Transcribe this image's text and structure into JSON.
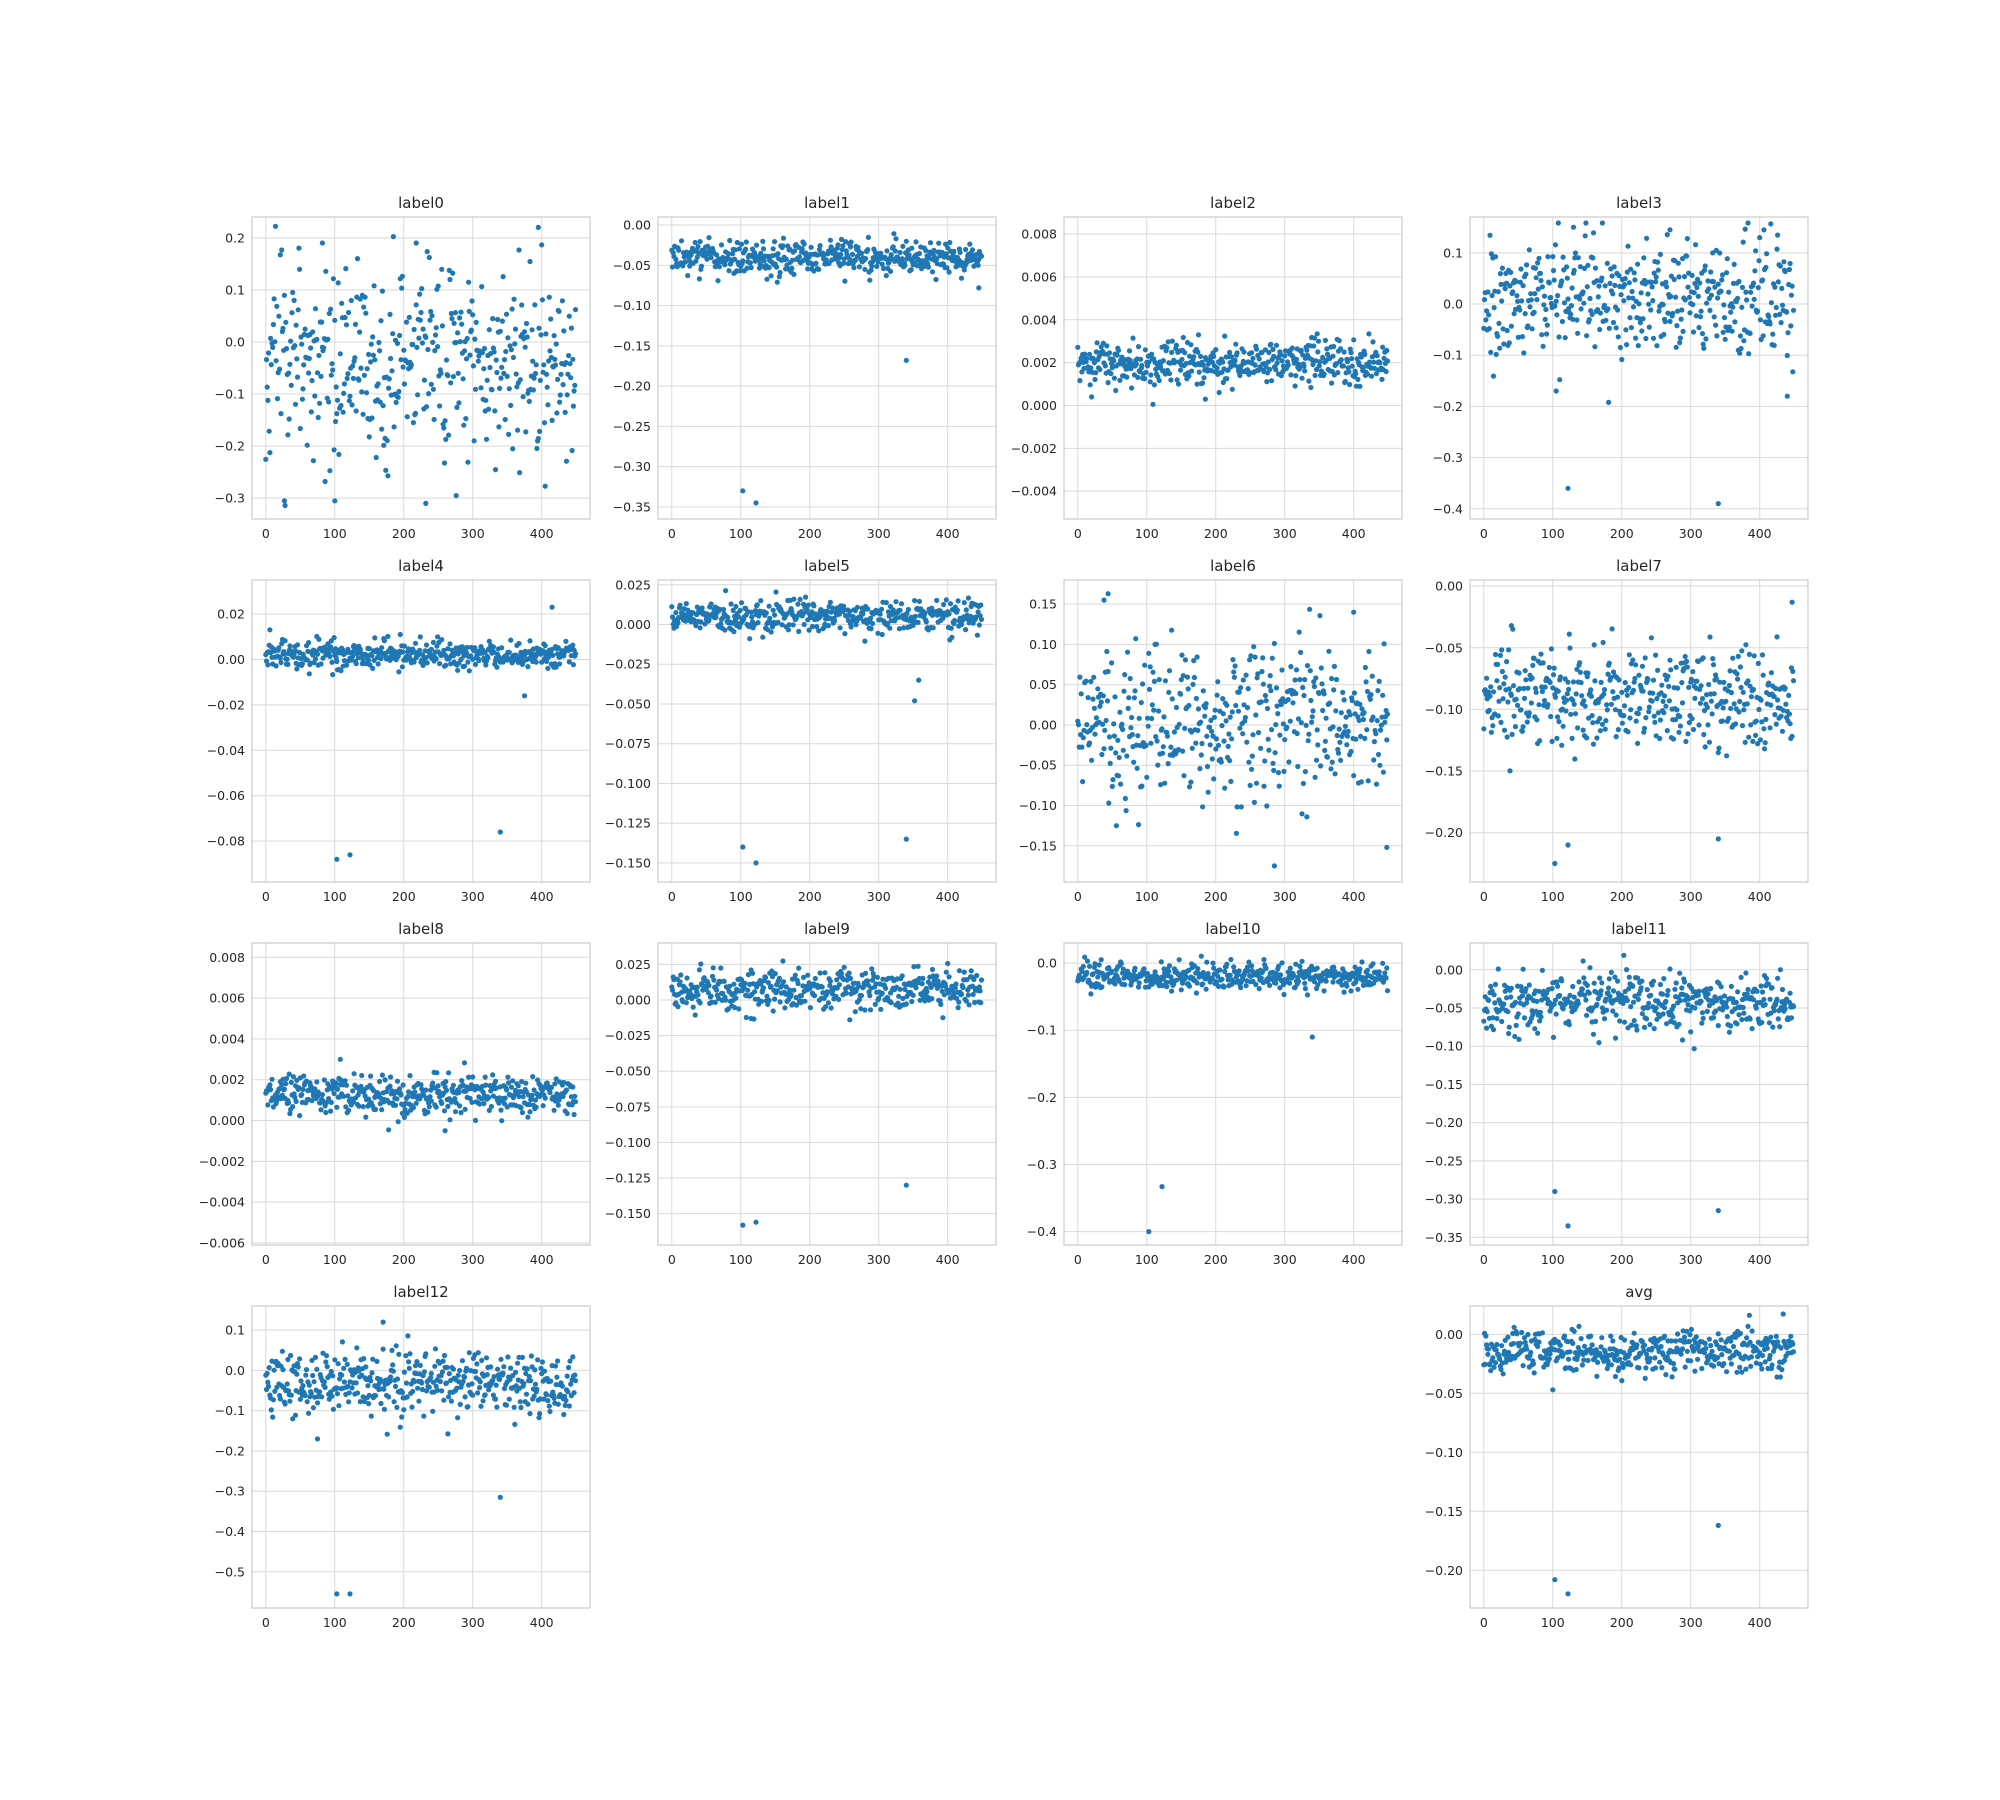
{
  "chart_data": [
    {
      "type": "scatter",
      "title": "label0",
      "xlim": [
        -20,
        470
      ],
      "ylim": [
        -0.34,
        0.24
      ],
      "xticks": [
        0,
        100,
        200,
        300,
        400
      ],
      "yticks": [
        -0.3,
        -0.2,
        -0.1,
        0.0,
        0.1,
        0.2
      ],
      "ytick_labels": [
        "−0.3",
        "−0.2",
        "−0.1",
        "0.0",
        "0.1",
        "0.2"
      ],
      "n": 450,
      "mean": -0.04,
      "spread": 0.09,
      "outliers": [
        [
          82,
          0.19
        ],
        [
          395,
          0.22
        ],
        [
          218,
          0.19
        ],
        [
          27,
          -0.305
        ],
        [
          100,
          -0.305
        ],
        [
          232,
          -0.31
        ],
        [
          276,
          -0.295
        ]
      ]
    },
    {
      "type": "scatter",
      "title": "label1",
      "xlim": [
        -20,
        470
      ],
      "ylim": [
        -0.365,
        0.01
      ],
      "xticks": [
        0,
        100,
        200,
        300,
        400
      ],
      "yticks": [
        -0.35,
        -0.3,
        -0.25,
        -0.2,
        -0.15,
        -0.1,
        -0.05,
        0.0
      ],
      "ytick_labels": [
        "−0.35",
        "−0.30",
        "−0.25",
        "−0.20",
        "−0.15",
        "−0.10",
        "−0.05",
        "0.00"
      ],
      "n": 450,
      "mean": -0.04,
      "spread": 0.01,
      "outliers": [
        [
          103,
          -0.33
        ],
        [
          122,
          -0.345
        ],
        [
          340,
          -0.168
        ],
        [
          445,
          -0.078
        ]
      ]
    },
    {
      "type": "scatter",
      "title": "label2",
      "xlim": [
        -20,
        470
      ],
      "ylim": [
        -0.0053,
        0.0088
      ],
      "xticks": [
        0,
        100,
        200,
        300,
        400
      ],
      "yticks": [
        -0.004,
        -0.002,
        0.0,
        0.002,
        0.004,
        0.006,
        0.008
      ],
      "ytick_labels": [
        "−0.004",
        "−0.002",
        "0.000",
        "0.002",
        "0.004",
        "0.006",
        "0.008"
      ],
      "n": 450,
      "mean": 0.002,
      "spread": 0.0005,
      "outliers": [
        [
          20,
          0.0004
        ],
        [
          185,
          0.0003
        ],
        [
          175,
          0.0033
        ]
      ]
    },
    {
      "type": "scatter",
      "title": "label3",
      "xlim": [
        -20,
        470
      ],
      "ylim": [
        -0.42,
        0.17
      ],
      "xticks": [
        0,
        100,
        200,
        300,
        400
      ],
      "yticks": [
        -0.4,
        -0.3,
        -0.2,
        -0.1,
        0.0,
        0.1
      ],
      "ytick_labels": [
        "−0.4",
        "−0.3",
        "−0.2",
        "−0.1",
        "0.0",
        "0.1"
      ],
      "n": 450,
      "mean": 0.01,
      "spread": 0.055,
      "outliers": [
        [
          122,
          -0.36
        ],
        [
          340,
          -0.39
        ],
        [
          105,
          -0.17
        ],
        [
          440,
          -0.18
        ],
        [
          130,
          0.15
        ],
        [
          270,
          0.145
        ]
      ]
    },
    {
      "type": "scatter",
      "title": "label4",
      "xlim": [
        -20,
        470
      ],
      "ylim": [
        -0.098,
        0.035
      ],
      "xticks": [
        0,
        100,
        200,
        300,
        400
      ],
      "yticks": [
        -0.08,
        -0.06,
        -0.04,
        -0.02,
        0.0,
        0.02
      ],
      "ytick_labels": [
        "−0.08",
        "−0.06",
        "−0.04",
        "−0.02",
        "0.00",
        "0.02"
      ],
      "n": 450,
      "mean": 0.002,
      "spread": 0.003,
      "outliers": [
        [
          103,
          -0.088
        ],
        [
          122,
          -0.086
        ],
        [
          340,
          -0.076
        ],
        [
          375,
          -0.016
        ],
        [
          415,
          0.023
        ],
        [
          195,
          0.011
        ]
      ]
    },
    {
      "type": "scatter",
      "title": "label5",
      "xlim": [
        -20,
        470
      ],
      "ylim": [
        -0.162,
        0.028
      ],
      "xticks": [
        0,
        100,
        200,
        300,
        400
      ],
      "yticks": [
        -0.15,
        -0.125,
        -0.1,
        -0.075,
        -0.05,
        -0.025,
        0.0,
        0.025
      ],
      "ytick_labels": [
        "−0.150",
        "−0.125",
        "−0.100",
        "−0.075",
        "−0.050",
        "−0.025",
        "0.000",
        "0.025"
      ],
      "n": 450,
      "mean": 0.005,
      "spread": 0.005,
      "outliers": [
        [
          103,
          -0.14
        ],
        [
          122,
          -0.15
        ],
        [
          340,
          -0.135
        ],
        [
          352,
          -0.048
        ],
        [
          358,
          -0.035
        ]
      ]
    },
    {
      "type": "scatter",
      "title": "label6",
      "xlim": [
        -20,
        470
      ],
      "ylim": [
        -0.195,
        0.18
      ],
      "xticks": [
        0,
        100,
        200,
        300,
        400
      ],
      "yticks": [
        -0.15,
        -0.1,
        -0.05,
        0.0,
        0.05,
        0.1,
        0.15
      ],
      "ytick_labels": [
        "−0.15",
        "−0.10",
        "−0.05",
        "0.00",
        "0.05",
        "0.10",
        "0.15"
      ],
      "n": 450,
      "mean": 0.005,
      "spread": 0.05,
      "outliers": [
        [
          38,
          0.155
        ],
        [
          44,
          0.163
        ],
        [
          400,
          0.14
        ],
        [
          285,
          -0.175
        ],
        [
          448,
          -0.152
        ]
      ]
    },
    {
      "type": "scatter",
      "title": "label7",
      "xlim": [
        -20,
        470
      ],
      "ylim": [
        -0.24,
        0.005
      ],
      "xticks": [
        0,
        100,
        200,
        300,
        400
      ],
      "yticks": [
        -0.2,
        -0.15,
        -0.1,
        -0.05,
        0.0
      ],
      "ytick_labels": [
        "−0.20",
        "−0.15",
        "−0.10",
        "−0.05",
        "0.00"
      ],
      "n": 450,
      "mean": -0.09,
      "spread": 0.02,
      "outliers": [
        [
          103,
          -0.225
        ],
        [
          122,
          -0.21
        ],
        [
          340,
          -0.205
        ],
        [
          447,
          -0.013
        ],
        [
          40,
          -0.032
        ]
      ]
    },
    {
      "type": "scatter",
      "title": "label8",
      "xlim": [
        -20,
        470
      ],
      "ylim": [
        -0.0061,
        0.0087
      ],
      "xticks": [
        0,
        100,
        200,
        300,
        400
      ],
      "yticks": [
        -0.006,
        -0.004,
        -0.002,
        0.0,
        0.002,
        0.004,
        0.006,
        0.008
      ],
      "ytick_labels": [
        "−0.006",
        "−0.004",
        "−0.002",
        "0.000",
        "0.002",
        "0.004",
        "0.006",
        "0.008"
      ],
      "n": 450,
      "mean": 0.0013,
      "spread": 0.0005,
      "outliers": [
        [
          108,
          0.003
        ],
        [
          260,
          -0.0005
        ]
      ]
    },
    {
      "type": "scatter",
      "title": "label9",
      "xlim": [
        -20,
        470
      ],
      "ylim": [
        -0.172,
        0.04
      ],
      "xticks": [
        0,
        100,
        200,
        300,
        400
      ],
      "yticks": [
        -0.15,
        -0.125,
        -0.1,
        -0.075,
        -0.05,
        -0.025,
        0.0,
        0.025
      ],
      "ytick_labels": [
        "−0.150",
        "−0.125",
        "−0.100",
        "−0.075",
        "−0.050",
        "−0.025",
        "0.000",
        "0.025"
      ],
      "n": 450,
      "mean": 0.008,
      "spread": 0.007,
      "outliers": [
        [
          103,
          -0.158
        ],
        [
          122,
          -0.156
        ],
        [
          340,
          -0.13
        ],
        [
          115,
          -0.013
        ]
      ]
    },
    {
      "type": "scatter",
      "title": "label10",
      "xlim": [
        -20,
        470
      ],
      "ylim": [
        -0.42,
        0.03
      ],
      "xticks": [
        0,
        100,
        200,
        300,
        400
      ],
      "yticks": [
        -0.4,
        -0.3,
        -0.2,
        -0.1,
        0.0
      ],
      "ytick_labels": [
        "−0.4",
        "−0.3",
        "−0.2",
        "−0.1",
        "0.0"
      ],
      "n": 450,
      "mean": -0.02,
      "spread": 0.01,
      "outliers": [
        [
          103,
          -0.4
        ],
        [
          122,
          -0.333
        ],
        [
          340,
          -0.11
        ]
      ]
    },
    {
      "type": "scatter",
      "title": "label11",
      "xlim": [
        -20,
        470
      ],
      "ylim": [
        -0.36,
        0.035
      ],
      "xticks": [
        0,
        100,
        200,
        300,
        400
      ],
      "yticks": [
        -0.35,
        -0.3,
        -0.25,
        -0.2,
        -0.15,
        -0.1,
        -0.05,
        0.0
      ],
      "ytick_labels": [
        "−0.35",
        "−0.30",
        "−0.25",
        "−0.20",
        "−0.15",
        "−0.10",
        "−0.05",
        "0.00"
      ],
      "n": 450,
      "mean": -0.04,
      "spread": 0.02,
      "outliers": [
        [
          103,
          -0.29
        ],
        [
          122,
          -0.335
        ],
        [
          340,
          -0.315
        ]
      ]
    },
    {
      "type": "scatter",
      "title": "label12",
      "xlim": [
        -20,
        470
      ],
      "ylim": [
        -0.59,
        0.16
      ],
      "xticks": [
        0,
        100,
        200,
        300,
        400
      ],
      "yticks": [
        -0.5,
        -0.4,
        -0.3,
        -0.2,
        -0.1,
        0.0,
        0.1
      ],
      "ytick_labels": [
        "−0.5",
        "−0.4",
        "−0.3",
        "−0.2",
        "−0.1",
        "0.0",
        "0.1"
      ],
      "n": 450,
      "mean": -0.03,
      "spread": 0.04,
      "outliers": [
        [
          103,
          -0.555
        ],
        [
          122,
          -0.555
        ],
        [
          340,
          -0.315
        ],
        [
          75,
          -0.17
        ],
        [
          170,
          0.12
        ]
      ]
    },
    {
      "type": "scatter",
      "title": "avg",
      "xlim": [
        -20,
        470
      ],
      "ylim": [
        -0.232,
        0.024
      ],
      "xticks": [
        0,
        100,
        200,
        300,
        400
      ],
      "yticks": [
        -0.2,
        -0.15,
        -0.1,
        -0.05,
        0.0
      ],
      "ytick_labels": [
        "−0.20",
        "−0.15",
        "−0.10",
        "−0.05",
        "0.00"
      ],
      "n": 450,
      "mean": -0.015,
      "spread": 0.01,
      "outliers": [
        [
          103,
          -0.208
        ],
        [
          122,
          -0.22
        ],
        [
          340,
          -0.162
        ],
        [
          100,
          -0.047
        ]
      ]
    }
  ]
}
